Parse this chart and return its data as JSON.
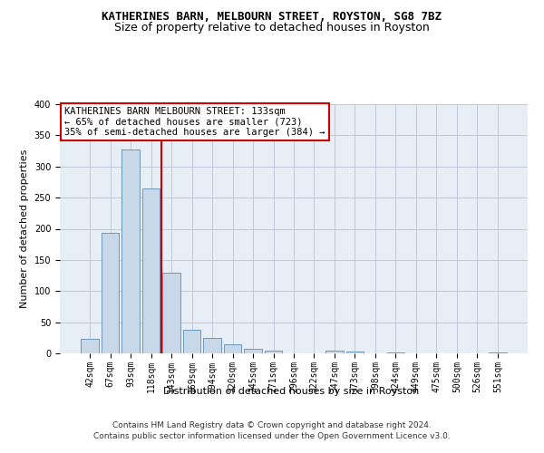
{
  "title": "KATHERINES BARN, MELBOURN STREET, ROYSTON, SG8 7BZ",
  "subtitle": "Size of property relative to detached houses in Royston",
  "xlabel": "Distribution of detached houses by size in Royston",
  "ylabel": "Number of detached properties",
  "categories": [
    "42sqm",
    "67sqm",
    "93sqm",
    "118sqm",
    "143sqm",
    "169sqm",
    "194sqm",
    "220sqm",
    "245sqm",
    "271sqm",
    "296sqm",
    "322sqm",
    "347sqm",
    "373sqm",
    "398sqm",
    "424sqm",
    "449sqm",
    "475sqm",
    "500sqm",
    "526sqm",
    "551sqm"
  ],
  "values": [
    23,
    193,
    328,
    265,
    130,
    38,
    25,
    14,
    7,
    5,
    0,
    0,
    4,
    3,
    0,
    2,
    0,
    0,
    0,
    0,
    2
  ],
  "bar_color": "#c8d8e8",
  "bar_edge_color": "#5b8db8",
  "grid_color": "#c0c8d8",
  "background_color": "#e8eef5",
  "property_line_x": 3.5,
  "annotation_title": "KATHERINES BARN MELBOURN STREET: 133sqm",
  "annotation_line1": "← 65% of detached houses are smaller (723)",
  "annotation_line2": "35% of semi-detached houses are larger (384) →",
  "annotation_box_color": "#ffffff",
  "annotation_box_edge_color": "#cc0000",
  "property_line_color": "#cc0000",
  "ylim": [
    0,
    400
  ],
  "yticks": [
    0,
    50,
    100,
    150,
    200,
    250,
    300,
    350,
    400
  ],
  "footer_line1": "Contains HM Land Registry data © Crown copyright and database right 2024.",
  "footer_line2": "Contains public sector information licensed under the Open Government Licence v3.0.",
  "title_fontsize": 9,
  "subtitle_fontsize": 9,
  "axis_label_fontsize": 8,
  "tick_fontsize": 7,
  "annotation_fontsize": 7.5,
  "footer_fontsize": 6.5
}
